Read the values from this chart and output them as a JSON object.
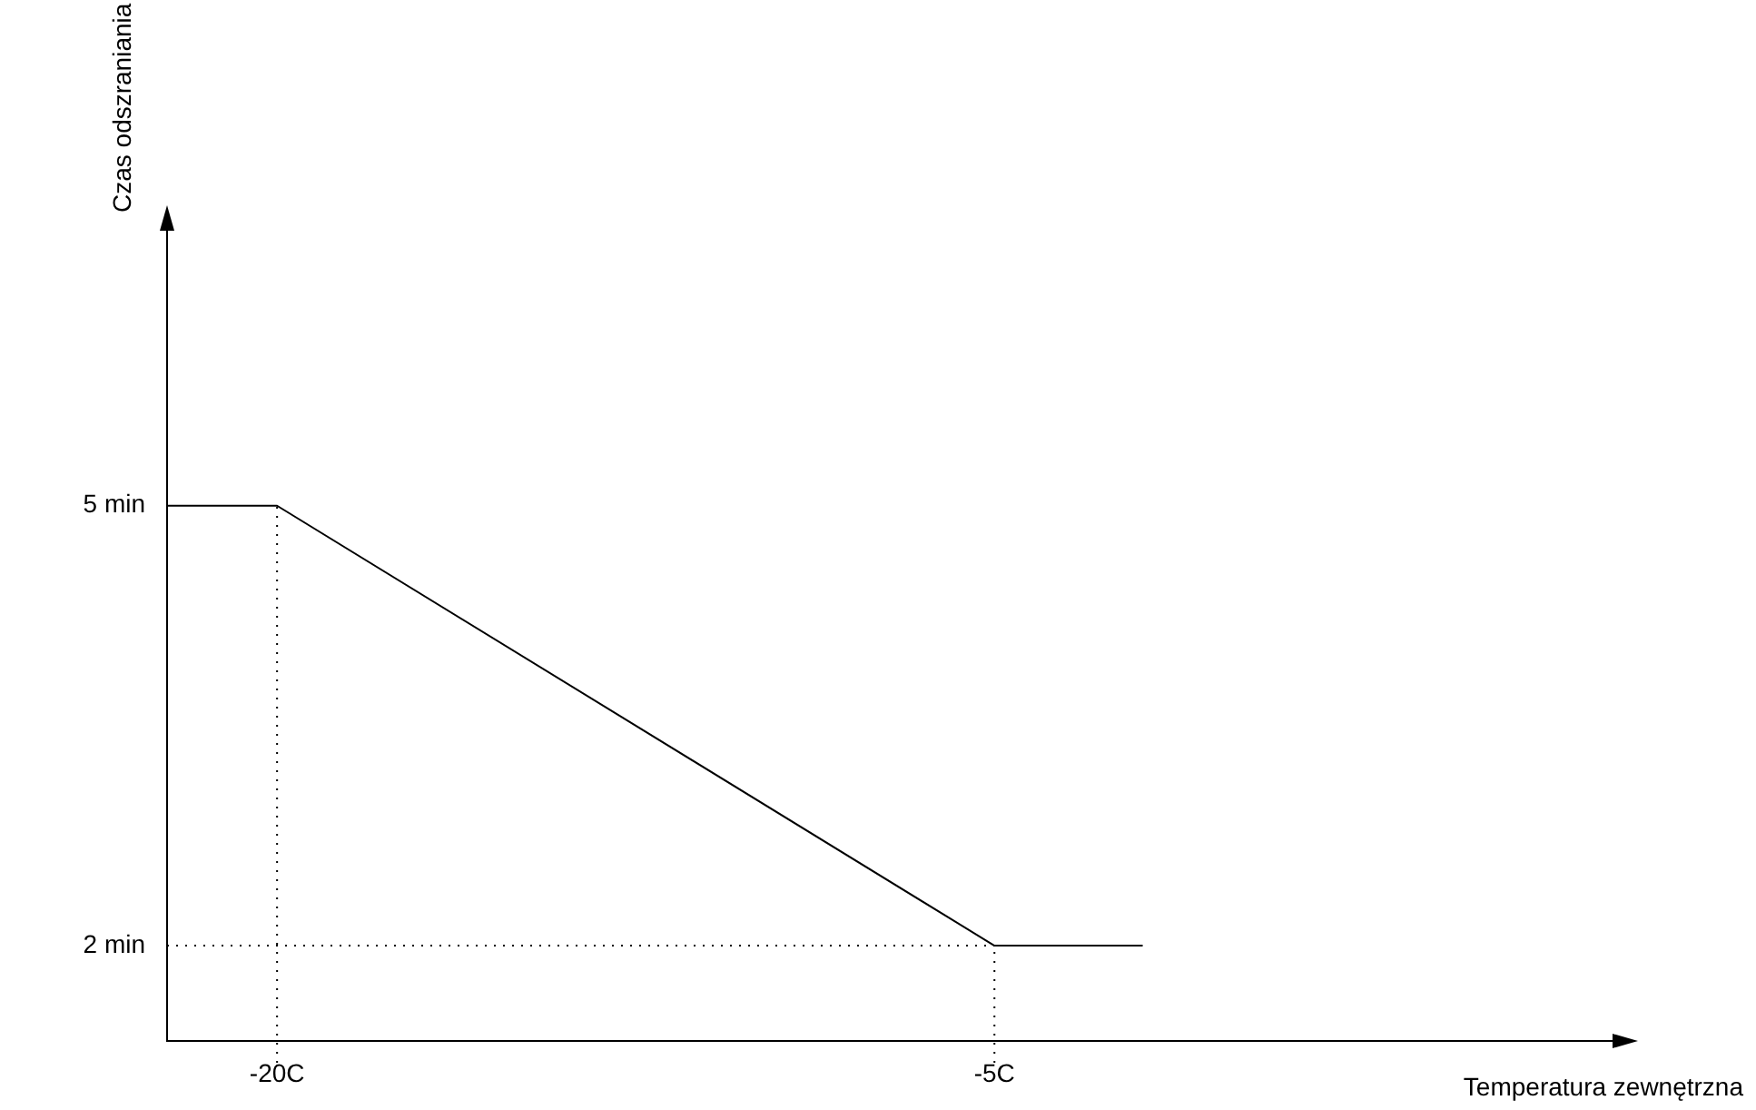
{
  "chart_data": {
    "type": "line",
    "xlabel": "Temperatura zewnętrzna",
    "ylabel": "Czas odszraniania",
    "x": [
      -22.3,
      -20,
      -5,
      -1.9
    ],
    "series": [
      {
        "color": "#000000",
        "values": [
          5,
          5,
          2,
          2
        ]
      }
    ],
    "xlim": [
      -22.3,
      8
    ],
    "ylim": [
      1.35,
      6.9
    ],
    "xticks": [
      {
        "value": -20,
        "label": "-20C"
      },
      {
        "value": -5,
        "label": "-5C"
      }
    ],
    "yticks": [
      {
        "value": 2,
        "label": "2 min"
      },
      {
        "value": 5,
        "label": "5 min"
      }
    ],
    "marker": "none",
    "line_style": "solid",
    "ref_lines": [
      {
        "axis": "x",
        "value": -20,
        "color": "#000000",
        "line_style": "dotted"
      },
      {
        "axis": "x",
        "value": -5,
        "color": "#000000",
        "line_style": "dotted"
      },
      {
        "axis": "y",
        "value": 2,
        "color": "#000000",
        "line_style": "dotted"
      }
    ]
  }
}
